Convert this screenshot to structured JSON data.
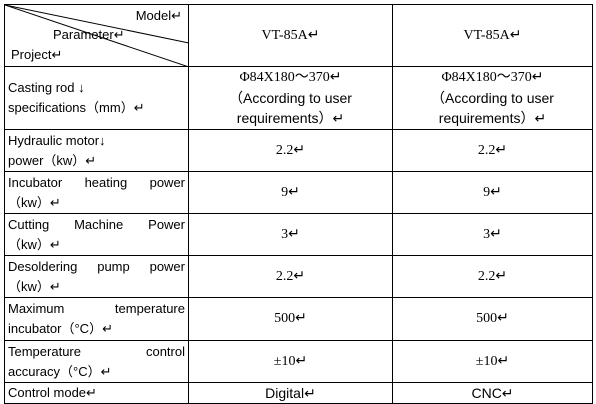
{
  "header": {
    "model": "Model↵",
    "parameter": "Parameter↵",
    "project": "Project↵",
    "columns": [
      "VT-85A↵",
      "VT-85A↵"
    ]
  },
  "rows": [
    {
      "label": [
        "Casting rod ↓",
        "specifications（mm）↵"
      ],
      "values": [
        [
          "Φ84X180～370↵",
          "（According to user",
          "requirements）↵"
        ],
        [
          "Φ84X180～370↵",
          "（According to user",
          "requirements）↵"
        ]
      ]
    },
    {
      "label": [
        "Hydraulic motor↓",
        "power（kw）↵"
      ],
      "values": [
        [
          "2.2↵"
        ],
        [
          "2.2↵"
        ]
      ]
    },
    {
      "label": [
        "Incubator heating power",
        "（kw）↵"
      ],
      "values": [
        [
          "9↵"
        ],
        [
          "9↵"
        ]
      ]
    },
    {
      "label": [
        "Cutting Machine Power",
        "（kw）↵"
      ],
      "values": [
        [
          "3↵"
        ],
        [
          "3↵"
        ]
      ]
    },
    {
      "label": [
        "Desoldering pump power",
        "（kw）↵"
      ],
      "values": [
        [
          "2.2↵"
        ],
        [
          "2.2↵"
        ]
      ]
    },
    {
      "label": [
        "Maximum temperature",
        "incubator（°C）↵"
      ],
      "values": [
        [
          "500↵"
        ],
        [
          "500↵"
        ]
      ]
    },
    {
      "label": [
        "Temperature control",
        "accuracy（°C）↵"
      ],
      "values": [
        [
          "±10↵"
        ],
        [
          "±10↵"
        ]
      ]
    },
    {
      "label": [
        "Control mode↵"
      ],
      "values": [
        [
          "Digital↵"
        ],
        [
          "CNC↵"
        ]
      ]
    }
  ]
}
